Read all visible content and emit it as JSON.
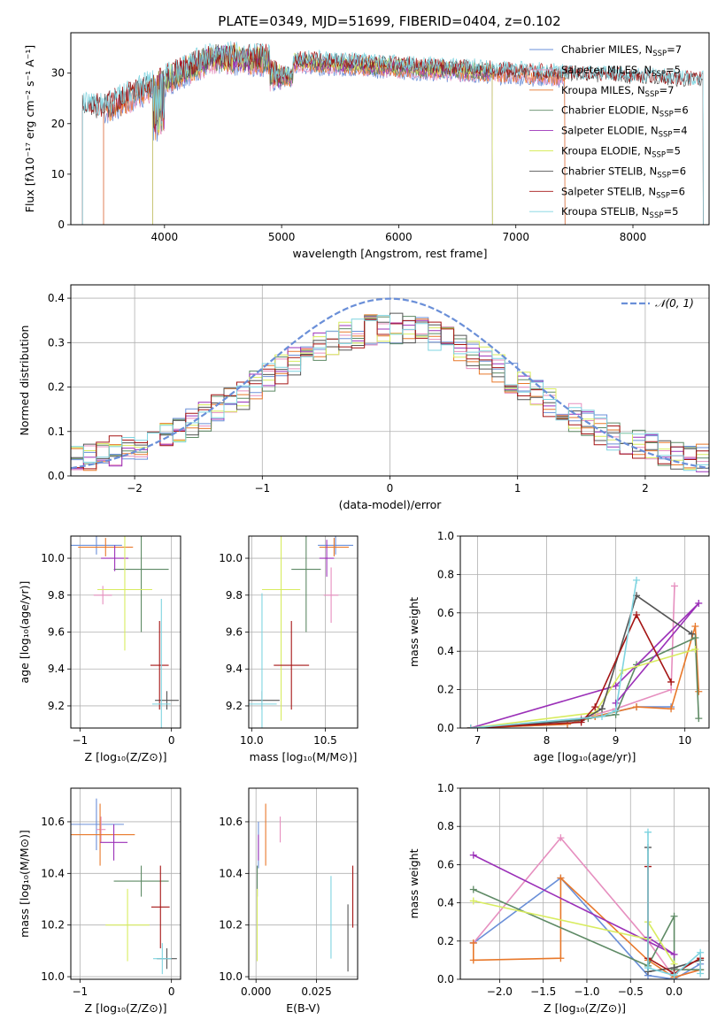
{
  "figure_title": "PLATE=0349, MJD=51699, FIBERID=0404, z=0.102",
  "series_colors": [
    "#6a8fd8",
    "#e68fbf",
    "#e8782a",
    "#5e8a65",
    "#9b30b8",
    "#d8ec5f",
    "#555555",
    "#a51515",
    "#7fd4e0"
  ],
  "chart_data": [
    {
      "id": "spectrum",
      "type": "line",
      "xlabel": "wavelength [Angstrom, rest frame]",
      "ylabel": "Flux [fλ10⁻¹⁷ erg cm⁻² s⁻¹ A⁻¹]",
      "xlim": [
        3200,
        8650
      ],
      "ylim": [
        0,
        38
      ],
      "xticks": [
        4000,
        5000,
        6000,
        7000,
        8000
      ],
      "yticks": [
        0,
        10,
        20,
        30
      ],
      "grid": false,
      "legend": "top-right",
      "series": [
        {
          "name": "Chabrier MILES, N",
          "sub": "SSP",
          "suffix": "=7",
          "range": [
            3480,
            7420
          ]
        },
        {
          "name": "Salpeter MILES, N",
          "sub": "SSP",
          "suffix": "=5",
          "range": [
            3480,
            7420
          ]
        },
        {
          "name": "Kroupa MILES, N",
          "sub": "SSP",
          "suffix": "=7",
          "range": [
            3480,
            7420
          ]
        },
        {
          "name": "Chabrier ELODIE, N",
          "sub": "SSP",
          "suffix": "=6",
          "range": [
            3900,
            6800
          ]
        },
        {
          "name": "Salpeter ELODIE, N",
          "sub": "SSP",
          "suffix": "=4",
          "range": [
            3900,
            6800
          ]
        },
        {
          "name": "Kroupa ELODIE, N",
          "sub": "SSP",
          "suffix": "=5",
          "range": [
            3900,
            6800
          ]
        },
        {
          "name": "Chabrier STELIB, N",
          "sub": "SSP",
          "suffix": "=6",
          "range": [
            3300,
            8600
          ]
        },
        {
          "name": "Salpeter STELIB, N",
          "sub": "SSP",
          "suffix": "=6",
          "range": [
            3300,
            8600
          ]
        },
        {
          "name": "Kroupa STELIB, N",
          "sub": "SSP",
          "suffix": "=5",
          "range": [
            3300,
            8600
          ]
        }
      ]
    },
    {
      "id": "residuals",
      "type": "histogram",
      "xlabel": "(data-model)/error",
      "ylabel": "Normed distribution",
      "xlim": [
        -2.5,
        2.5
      ],
      "ylim": [
        0,
        0.43
      ],
      "xticks": [
        -2,
        -1,
        0,
        1,
        2
      ],
      "yticks": [
        0.0,
        0.1,
        0.2,
        0.3,
        0.4
      ],
      "grid": true,
      "legend": "top-right",
      "reference_curve": {
        "label": "𝒩(0, 1)",
        "mean": 0,
        "sigma": 1
      },
      "bins": {
        "start": -2.5,
        "width": 0.1,
        "count": 50
      }
    },
    {
      "id": "age-vs-Z",
      "type": "errorbar",
      "xlabel": "Z [log₁₀(Z/Z⊙)]",
      "ylabel": "age  [log₁₀(age/yr)]",
      "xlim": [
        -1.1,
        0.1
      ],
      "ylim": [
        9.08,
        10.12
      ],
      "xticks": [
        -1,
        0
      ],
      "yticks": [
        9.2,
        9.4,
        9.6,
        9.8,
        10.0
      ],
      "grid": true,
      "points": [
        {
          "x": -0.82,
          "y": 10.07,
          "xerr": 0.28,
          "yerr": 0.05
        },
        {
          "x": -0.75,
          "y": 9.8,
          "xerr": 0.1,
          "yerr": 0.05
        },
        {
          "x": -0.72,
          "y": 10.06,
          "xerr": 0.3,
          "yerr": 0.05
        },
        {
          "x": -0.33,
          "y": 9.94,
          "xerr": 0.3,
          "yerr": 0.34
        },
        {
          "x": -0.62,
          "y": 10.0,
          "xerr": 0.15,
          "yerr": 0.07
        },
        {
          "x": -0.51,
          "y": 9.83,
          "xerr": 0.3,
          "yerr": 0.33
        },
        {
          "x": -0.05,
          "y": 9.23,
          "xerr": 0.13,
          "yerr": 0.05
        },
        {
          "x": -0.13,
          "y": 9.42,
          "xerr": 0.1,
          "yerr": 0.24
        },
        {
          "x": -0.11,
          "y": 9.21,
          "xerr": 0.1,
          "yerr": 0.57
        }
      ]
    },
    {
      "id": "age-vs-mass",
      "type": "errorbar",
      "xlabel": "mass [log₁₀(M/M⊙)]",
      "ylabel": "",
      "xlim": [
        9.98,
        10.72
      ],
      "ylim": [
        9.08,
        10.12
      ],
      "xticks": [
        10.0,
        10.5
      ],
      "yticks": [
        9.2,
        9.4,
        9.6,
        9.8,
        10.0
      ],
      "grid": true,
      "points": [
        {
          "x": 10.57,
          "y": 10.07,
          "xerr": 0.12,
          "yerr": 0.05
        },
        {
          "x": 10.54,
          "y": 9.8,
          "xerr": 0.05,
          "yerr": 0.15
        },
        {
          "x": 10.56,
          "y": 10.06,
          "xerr": 0.1,
          "yerr": 0.05
        },
        {
          "x": 10.37,
          "y": 9.94,
          "xerr": 0.1,
          "yerr": 0.34
        },
        {
          "x": 10.51,
          "y": 10.0,
          "xerr": 0.05,
          "yerr": 0.1
        },
        {
          "x": 10.2,
          "y": 9.83,
          "xerr": 0.13,
          "yerr": 0.71
        },
        {
          "x": 10.07,
          "y": 9.23,
          "xerr": 0.12,
          "yerr": 0.05
        },
        {
          "x": 10.27,
          "y": 9.42,
          "xerr": 0.12,
          "yerr": 0.24
        },
        {
          "x": 10.07,
          "y": 9.21,
          "xerr": 0.1,
          "yerr": 0.6
        }
      ]
    },
    {
      "id": "weight-vs-age",
      "type": "line",
      "xlabel": "age  [log₁₀(age/yr)]",
      "ylabel": "mass weight",
      "xlim": [
        6.75,
        10.35
      ],
      "ylim": [
        0,
        1.0
      ],
      "xticks": [
        7,
        8,
        9,
        10
      ],
      "yticks": [
        0.0,
        0.2,
        0.4,
        0.6,
        0.8,
        1.0
      ],
      "grid": true,
      "series": [
        {
          "x": [
            6.9,
            8.3,
            8.7,
            9.3,
            9.8
          ],
          "y": [
            0.0,
            0.02,
            0.06,
            0.11,
            0.11
          ]
        },
        {
          "x": [
            6.9,
            8.5,
            9.0,
            9.8,
            9.85
          ],
          "y": [
            0.0,
            0.05,
            0.1,
            0.2,
            0.74
          ]
        },
        {
          "x": [
            6.9,
            8.3,
            8.7,
            9.3,
            9.8,
            10.15,
            10.2
          ],
          "y": [
            0.0,
            0.02,
            0.06,
            0.11,
            0.1,
            0.53,
            0.19
          ]
        },
        {
          "x": [
            6.9,
            8.6,
            9.0,
            9.3,
            10.15,
            10.2
          ],
          "y": [
            0.0,
            0.05,
            0.07,
            0.33,
            0.47,
            0.05
          ]
        },
        {
          "x": [
            6.9,
            9.0,
            10.2,
            9.0
          ],
          "y": [
            0.0,
            0.22,
            0.65,
            0.13
          ]
        },
        {
          "x": [
            6.9,
            8.7,
            9.1,
            10.15
          ],
          "y": [
            0.0,
            0.08,
            0.3,
            0.41
          ]
        },
        {
          "x": [
            6.9,
            8.5,
            8.8,
            9.3,
            10.1
          ],
          "y": [
            0.0,
            0.04,
            0.1,
            0.69,
            0.49
          ]
        },
        {
          "x": [
            6.9,
            8.5,
            8.7,
            9.3,
            9.8
          ],
          "y": [
            0.0,
            0.03,
            0.11,
            0.59,
            0.24
          ]
        },
        {
          "x": [
            6.9,
            8.8,
            9.0,
            9.3
          ],
          "y": [
            0.0,
            0.06,
            0.09,
            0.77
          ]
        }
      ]
    },
    {
      "id": "mass-vs-Z",
      "type": "errorbar",
      "xlabel": "Z [log₁₀(Z/Z⊙)]",
      "ylabel": "mass [log₁₀(M/M⊙)]",
      "xlim": [
        -1.1,
        0.1
      ],
      "ylim": [
        9.99,
        10.73
      ],
      "xticks": [
        -1,
        0
      ],
      "yticks": [
        10.0,
        10.2,
        10.4,
        10.6
      ],
      "grid": true,
      "points": [
        {
          "x": -0.82,
          "y": 10.59,
          "xerr": 0.3,
          "yerr": 0.1
        },
        {
          "x": -0.77,
          "y": 10.57,
          "xerr": 0.05,
          "yerr": 0.05
        },
        {
          "x": -0.78,
          "y": 10.55,
          "xerr": 0.38,
          "yerr": 0.12
        },
        {
          "x": -0.33,
          "y": 10.37,
          "xerr": 0.3,
          "yerr": 0.06
        },
        {
          "x": -0.63,
          "y": 10.52,
          "xerr": 0.15,
          "yerr": 0.07
        },
        {
          "x": -0.48,
          "y": 10.2,
          "xerr": 0.24,
          "yerr": 0.14
        },
        {
          "x": -0.05,
          "y": 10.07,
          "xerr": 0.11,
          "yerr": 0.04
        },
        {
          "x": -0.12,
          "y": 10.27,
          "xerr": 0.1,
          "yerr": 0.16
        },
        {
          "x": -0.1,
          "y": 10.07,
          "xerr": 0.1,
          "yerr": 0.06
        }
      ]
    },
    {
      "id": "mass-vs-EBV",
      "type": "errorbar",
      "xlabel": "E(B-V)",
      "ylabel": "",
      "xlim": [
        -0.003,
        0.042
      ],
      "ylim": [
        9.99,
        10.73
      ],
      "xticks": [
        0.0,
        0.025
      ],
      "xtick_labels": [
        "0.000",
        "0.025"
      ],
      "yticks": [
        10.0,
        10.2,
        10.4,
        10.6
      ],
      "grid": true,
      "points": [
        {
          "x": 0.001,
          "y": 10.51,
          "xerr": 0,
          "yerr": 0.09
        },
        {
          "x": 0.01,
          "y": 10.57,
          "xerr": 0,
          "yerr": 0.05
        },
        {
          "x": 0.004,
          "y": 10.55,
          "xerr": 0,
          "yerr": 0.12
        },
        {
          "x": 0.0005,
          "y": 10.37,
          "xerr": 0,
          "yerr": 0.06
        },
        {
          "x": 0.001,
          "y": 10.5,
          "xerr": 0,
          "yerr": 0.05
        },
        {
          "x": 0.0005,
          "y": 10.2,
          "xerr": 0,
          "yerr": 0.14
        },
        {
          "x": 0.038,
          "y": 10.15,
          "xerr": 0,
          "yerr": 0.13
        },
        {
          "x": 0.04,
          "y": 10.31,
          "xerr": 0,
          "yerr": 0.12
        },
        {
          "x": 0.031,
          "y": 10.23,
          "xerr": 0,
          "yerr": 0.16
        }
      ]
    },
    {
      "id": "weight-vs-Z",
      "type": "line",
      "xlabel": "Z [log₁₀(Z/Z⊙)]",
      "ylabel": "mass weight",
      "xlim": [
        -2.45,
        0.4
      ],
      "ylim": [
        0,
        1.0
      ],
      "xticks": [
        -2.0,
        -1.5,
        -1.0,
        -0.5,
        0.0
      ],
      "yticks": [
        0.0,
        0.2,
        0.4,
        0.6,
        0.8,
        1.0
      ],
      "grid": true,
      "series": [
        {
          "x": [
            -2.3,
            -1.3,
            -0.3,
            0.0,
            0.3
          ],
          "y": [
            0.19,
            0.53,
            0.02,
            0.0,
            0.08
          ]
        },
        {
          "x": [
            -2.3,
            -1.3,
            -0.3,
            0.0,
            0.3
          ],
          "y": [
            0.19,
            0.74,
            0.2,
            0.01,
            0.05
          ]
        },
        {
          "x": [
            -2.3,
            -2.3,
            -1.3,
            -1.3,
            -0.3,
            0.0,
            0.3,
            0.3
          ],
          "y": [
            0.19,
            0.1,
            0.11,
            0.53,
            0.1,
            0.01,
            0.05,
            0.11
          ]
        },
        {
          "x": [
            -2.3,
            -0.3,
            0.0,
            0.0,
            0.3
          ],
          "y": [
            0.47,
            0.07,
            0.33,
            0.05,
            0.05
          ]
        },
        {
          "x": [
            -2.3,
            0.0,
            -0.3
          ],
          "y": [
            0.65,
            0.13,
            0.22
          ]
        },
        {
          "x": [
            -2.3,
            -0.3,
            -0.3,
            0.0
          ],
          "y": [
            0.41,
            0.21,
            0.3,
            0.08
          ]
        },
        {
          "x": [
            -0.3,
            -0.3,
            0.0,
            0.3
          ],
          "y": [
            0.69,
            0.04,
            0.06,
            0.1
          ]
        },
        {
          "x": [
            -0.3,
            -0.3,
            0.0,
            0.3
          ],
          "y": [
            0.59,
            0.11,
            0.03,
            0.11
          ]
        },
        {
          "x": [
            -0.3,
            -0.3,
            0.0,
            0.3,
            0.3
          ],
          "y": [
            0.77,
            0.06,
            0.02,
            0.14,
            0.03
          ]
        }
      ]
    }
  ]
}
